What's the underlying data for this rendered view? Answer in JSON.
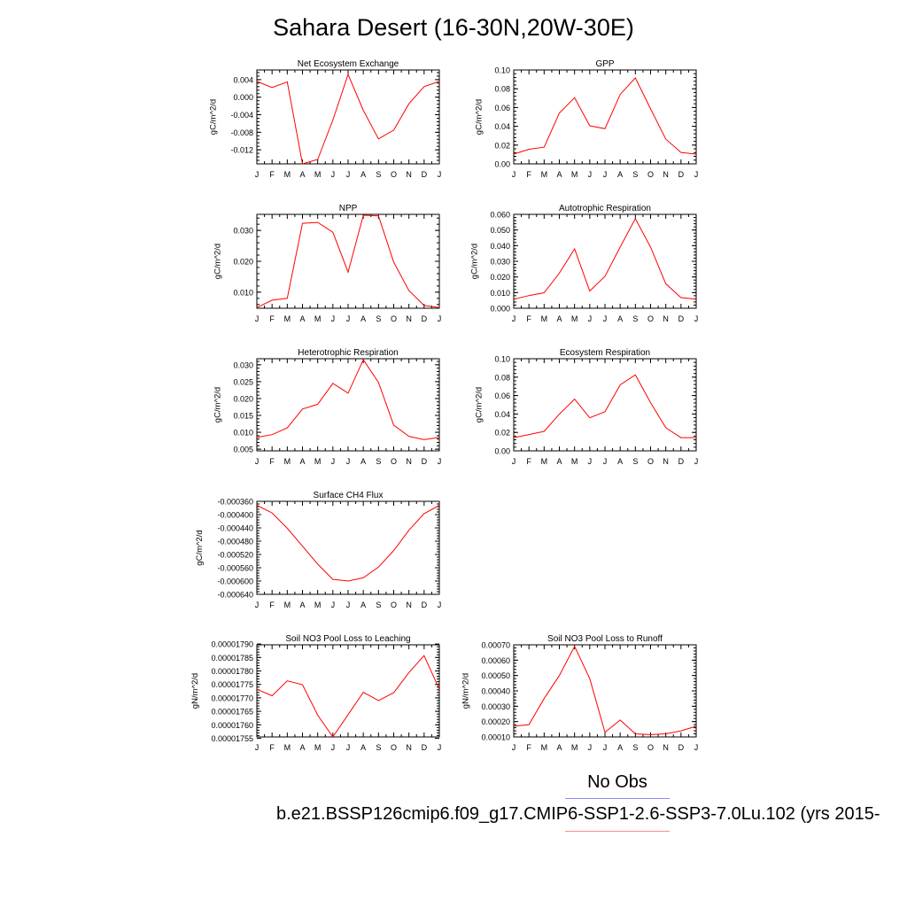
{
  "title": "Sahara Desert (16-30N,20W-30E)",
  "legend": {
    "obs_label": "No Obs",
    "case_label": "b.e21.BSSP126cmip6.f09_g17.CMIP6-SSP1-2.6-SSP3-7.0Lu.102 (yrs 2015-",
    "obs_color": "#8a8aff",
    "case_color": "#ff8a8a"
  },
  "colors": {
    "line": "#ff0000",
    "axis": "#000000"
  },
  "months": [
    "J",
    "F",
    "M",
    "A",
    "M",
    "J",
    "J",
    "A",
    "S",
    "O",
    "N",
    "D",
    "J"
  ],
  "chart_data": [
    {
      "type": "line",
      "title": "Net Ecosystem Exchange",
      "ylabel": "gC/m^2/d",
      "ylim": [
        -0.0152,
        0.0062
      ],
      "yticks": [
        0.004,
        0.0,
        -0.004,
        -0.008,
        -0.012
      ],
      "yticklabels": [
        "0.004",
        "0.000",
        "-0.004",
        "-0.008",
        "-0.012"
      ],
      "values": [
        0.0036,
        0.0022,
        0.0035,
        -0.0152,
        -0.0142,
        -0.0052,
        0.0052,
        -0.003,
        -0.0095,
        -0.0075,
        -0.0015,
        0.0024,
        0.0036
      ]
    },
    {
      "type": "line",
      "title": "GPP",
      "ylabel": "gC/m^2/d",
      "ylim": [
        0.0,
        0.1
      ],
      "yticks": [
        0.1,
        0.08,
        0.06,
        0.04,
        0.02,
        0.0
      ],
      "yticklabels": [
        "0.10",
        "0.08",
        "0.06",
        "0.04",
        "0.02",
        "0.00"
      ],
      "values": [
        0.0104,
        0.0156,
        0.0177,
        0.0541,
        0.0705,
        0.0406,
        0.0375,
        0.074,
        0.0916,
        0.0586,
        0.0263,
        0.0122,
        0.0104
      ]
    },
    {
      "type": "line",
      "title": "NPP",
      "ylabel": "gC/m^2/d",
      "ylim": [
        0.0048,
        0.0352
      ],
      "yticks": [
        0.03,
        0.02,
        0.01
      ],
      "yticklabels": [
        "0.030",
        "0.020",
        "0.010"
      ],
      "values": [
        0.005,
        0.0074,
        0.008,
        0.0323,
        0.0326,
        0.0294,
        0.0165,
        0.0349,
        0.0347,
        0.0197,
        0.0105,
        0.0057,
        0.005
      ]
    },
    {
      "type": "line",
      "title": "Autotrophic Respiration",
      "ylabel": "gC/m^2/d",
      "ylim": [
        0.0,
        0.06
      ],
      "yticks": [
        0.06,
        0.05,
        0.04,
        0.03,
        0.02,
        0.01,
        0.0
      ],
      "yticklabels": [
        "0.060",
        "0.050",
        "0.040",
        "0.030",
        "0.020",
        "0.010",
        "0.000"
      ],
      "values": [
        0.0058,
        0.0081,
        0.0099,
        0.0224,
        0.0379,
        0.011,
        0.0204,
        0.0391,
        0.0573,
        0.039,
        0.0156,
        0.0068,
        0.0058
      ]
    },
    {
      "type": "line",
      "title": "Heterotrophic Respiration",
      "ylabel": "gC/m^2/d",
      "ylim": [
        0.0045,
        0.0318
      ],
      "yticks": [
        0.03,
        0.025,
        0.02,
        0.015,
        0.01,
        0.005
      ],
      "yticklabels": [
        "0.030",
        "0.025",
        "0.020",
        "0.015",
        "0.010",
        "0.005"
      ],
      "values": [
        0.0085,
        0.0093,
        0.0113,
        0.0169,
        0.0183,
        0.0245,
        0.0216,
        0.0315,
        0.0248,
        0.0121,
        0.0088,
        0.0078,
        0.0085
      ]
    },
    {
      "type": "line",
      "title": "Ecosystem Respiration",
      "ylabel": "gC/m^2/d",
      "ylim": [
        0.0,
        0.1
      ],
      "yticks": [
        0.1,
        0.08,
        0.06,
        0.04,
        0.02,
        0.0
      ],
      "yticklabels": [
        "0.10",
        "0.08",
        "0.06",
        "0.04",
        "0.02",
        "0.00"
      ],
      "values": [
        0.0143,
        0.0177,
        0.0212,
        0.0398,
        0.0562,
        0.0359,
        0.0424,
        0.0716,
        0.0825,
        0.0523,
        0.0251,
        0.0143,
        0.0143
      ]
    },
    {
      "type": "line",
      "title": "Surface CH4 Flux",
      "ylabel": "gC/m^2/d",
      "ylim": [
        -0.00064,
        -0.00036
      ],
      "yticks": [
        -0.00036,
        -0.0004,
        -0.00044,
        -0.00048,
        -0.00052,
        -0.00056,
        -0.0006,
        -0.00064
      ],
      "yticklabels": [
        "-0.000360",
        "-0.000400",
        "-0.000440",
        "-0.000480",
        "-0.000520",
        "-0.000560",
        "-0.000600",
        "-0.000640"
      ],
      "values": [
        -0.000372,
        -0.000395,
        -0.000441,
        -0.000495,
        -0.000549,
        -0.000595,
        -0.0006,
        -0.00059,
        -0.000558,
        -0.000508,
        -0.000447,
        -0.000397,
        -0.000372
      ]
    },
    {
      "type": "line",
      "title": "Soil NO3 Pool Loss to Leaching",
      "ylabel": "gN/m^2/d",
      "ylim": [
        1.7555e-05,
        1.7897e-05
      ],
      "yticks": [
        1.79e-05,
        1.785e-05,
        1.78e-05,
        1.775e-05,
        1.77e-05,
        1.765e-05,
        1.76e-05,
        1.755e-05
      ],
      "yticklabels": [
        "0.00001790",
        "0.00001785",
        "0.00001780",
        "0.00001775",
        "0.00001770",
        "0.00001765",
        "0.00001760",
        "0.00001755"
      ],
      "values": [
        1.7732e-05,
        1.7708e-05,
        1.7763e-05,
        1.7749e-05,
        1.7636e-05,
        1.7555e-05,
        1.7638e-05,
        1.7721e-05,
        1.769e-05,
        1.7719e-05,
        1.7794e-05,
        1.7857e-05,
        1.7732e-05
      ]
    },
    {
      "type": "line",
      "title": "Soil NO3 Pool Loss to Runoff",
      "ylabel": "gN/m^2/d",
      "ylim": [
        0.0001,
        0.0007
      ],
      "yticks": [
        0.0007,
        0.0006,
        0.0005,
        0.0004,
        0.0003,
        0.0002,
        0.0001
      ],
      "yticklabels": [
        "0.00070",
        "0.00060",
        "0.00050",
        "0.00040",
        "0.00030",
        "0.00020",
        "0.00010"
      ],
      "values": [
        0.00017,
        0.00018,
        0.00035,
        0.0005,
        0.00069,
        0.00048,
        0.00013,
        0.00021,
        0.00012,
        0.000115,
        0.00012,
        0.00014,
        0.00017
      ]
    }
  ]
}
